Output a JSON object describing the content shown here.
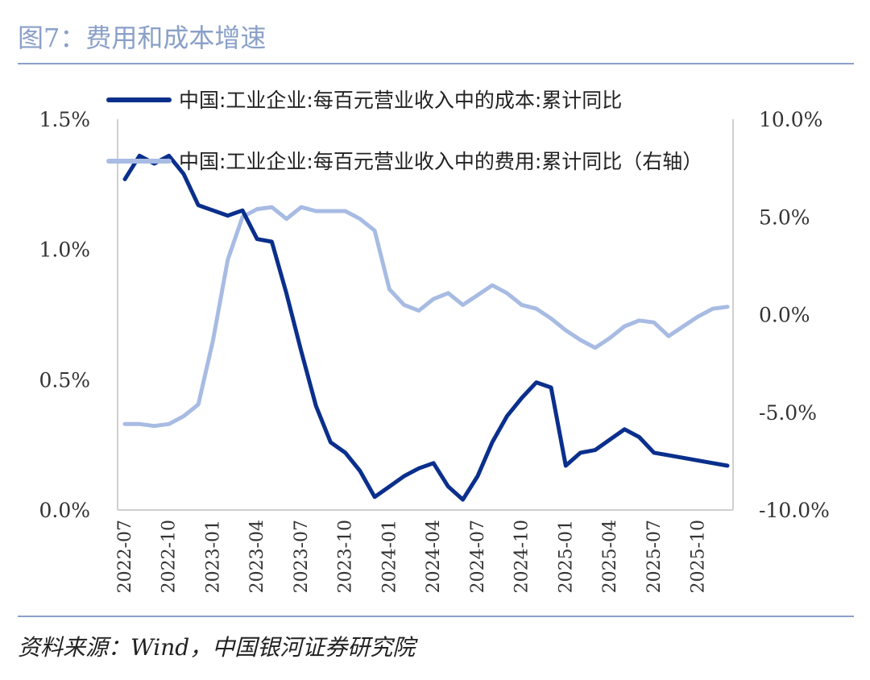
{
  "figure": {
    "title": "图7：费用和成本增速",
    "source": "资料来源：Wind，中国银河证券研究院"
  },
  "colors": {
    "cost_line": "#0a2f8c",
    "expense_line": "#a7bbe3",
    "axis": "#cfcfcf",
    "rule": "#8aa0c8"
  },
  "chart_data": {
    "type": "line",
    "title": "",
    "x": [
      "2022-07",
      "2022-08",
      "2022-09",
      "2022-10",
      "2022-11",
      "2022-12",
      "2023-01",
      "2023-02",
      "2023-03",
      "2023-04",
      "2023-05",
      "2023-06",
      "2023-07",
      "2023-08",
      "2023-09",
      "2023-10",
      "2023-11",
      "2023-12",
      "2024-01",
      "2024-02",
      "2024-03",
      "2024-04",
      "2024-05",
      "2024-06",
      "2024-07",
      "2024-08",
      "2024-09",
      "2024-10",
      "2024-11",
      "2024-12",
      "2025-01",
      "2025-02",
      "2025-03",
      "2025-04",
      "2025-05",
      "2025-06",
      "2025-07",
      "2025-08",
      "2025-09",
      "2025-10",
      "2025-11",
      "2025-12"
    ],
    "x_tick_labels": [
      "2022-07",
      "2022-10",
      "2023-01",
      "2023-04",
      "2023-07",
      "2023-10",
      "2024-01",
      "2024-04",
      "2024-07",
      "2024-10",
      "2025-01",
      "2025-04",
      "2025-07",
      "2025-10"
    ],
    "series": [
      {
        "name": "中国:工业企业:每百元营业收入中的成本:累计同比",
        "axis": "left",
        "values": [
          1.27,
          1.36,
          1.33,
          1.36,
          1.29,
          1.17,
          1.15,
          1.13,
          1.15,
          1.04,
          1.03,
          0.83,
          0.61,
          0.4,
          0.26,
          0.22,
          0.15,
          0.05,
          0.09,
          0.13,
          0.16,
          0.18,
          0.09,
          0.04,
          0.13,
          0.26,
          0.36,
          0.43,
          0.49,
          0.47,
          0.17,
          0.22,
          0.23,
          0.27,
          0.31,
          0.28,
          0.22,
          0.21,
          0.2,
          0.19,
          0.18,
          0.17
        ]
      },
      {
        "name": "中国:工业企业:每百元营业收入中的费用:累计同比（右轴）",
        "axis": "right",
        "values": [
          -5.6,
          -5.6,
          -5.7,
          -5.6,
          -5.2,
          -4.6,
          -1.3,
          2.8,
          5.0,
          5.4,
          5.5,
          4.9,
          5.5,
          5.3,
          5.3,
          5.3,
          4.9,
          4.3,
          1.3,
          0.5,
          0.2,
          0.8,
          1.1,
          0.5,
          1.0,
          1.5,
          1.1,
          0.5,
          0.3,
          -0.2,
          -0.8,
          -1.3,
          -1.7,
          -1.2,
          -0.6,
          -0.3,
          -0.4,
          -1.1,
          -0.6,
          -0.1,
          0.3,
          0.4
        ]
      }
    ],
    "y_left": {
      "lim": [
        0,
        1.5
      ],
      "ticks": [
        0,
        0.5,
        1.0,
        1.5
      ],
      "tick_labels": [
        "0.0%",
        "0.5%",
        "1.0%",
        "1.5%"
      ]
    },
    "y_right": {
      "lim": [
        -10,
        10
      ],
      "ticks": [
        -10,
        -5,
        0,
        5,
        10
      ],
      "tick_labels": [
        "-10.0%",
        "-5.0%",
        "0.0%",
        "5.0%",
        "10.0%"
      ]
    },
    "legend": [
      "中国:工业企业:每百元营业收入中的成本:累计同比",
      "中国:工业企业:每百元营业收入中的费用:累计同比（右轴）"
    ],
    "legend_position": "top",
    "grid": false
  }
}
